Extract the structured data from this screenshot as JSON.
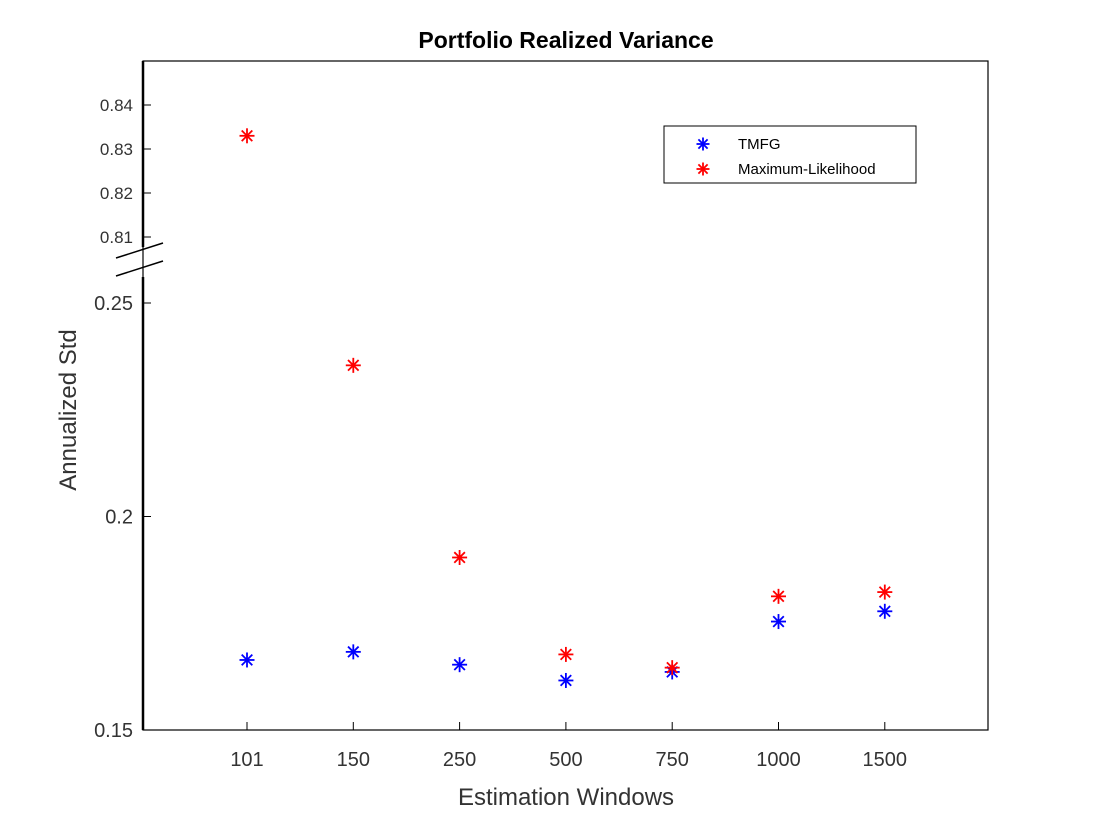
{
  "chart_data": {
    "type": "scatter",
    "title": "Portfolio Realized Variance",
    "xlabel": "Estimation Windows",
    "ylabel": "Annualized Std",
    "categories": [
      "101",
      "150",
      "250",
      "500",
      "750",
      "1000",
      "1500"
    ],
    "y_axis_break": true,
    "upper_segment": {
      "ylim": [
        0.806,
        0.85
      ],
      "ticks": [
        "0.81",
        "0.82",
        "0.83",
        "0.84"
      ]
    },
    "lower_segment": {
      "ylim": [
        0.15,
        0.25
      ],
      "ticks": [
        "0.15",
        "0.2",
        "0.25"
      ]
    },
    "grid": false,
    "legend_position": "top-right",
    "marker": "asterisk",
    "series": [
      {
        "name": "TMFG",
        "color": "#0000ff",
        "values": [
          0.1664,
          0.1683,
          0.1653,
          0.1616,
          0.1636,
          0.1754,
          0.1778
        ]
      },
      {
        "name": "Maximum-Likelihood",
        "color": "#ff0000",
        "values": [
          0.833,
          0.2354,
          0.1904,
          0.1677,
          0.1646,
          0.1813,
          0.1823
        ]
      }
    ]
  }
}
